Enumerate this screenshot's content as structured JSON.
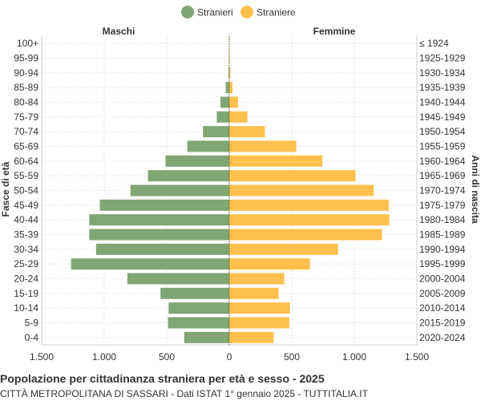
{
  "chart_data": {
    "type": "bar",
    "orientation": "horizontal-population-pyramid",
    "title": "Popolazione per cittadinanza straniera per età e sesso - 2025",
    "subtitle": "CITTÀ METROPOLITANA DI SASSARI - Dati ISTAT 1° gennaio 2025 - TUTTITALIA.IT",
    "left_header": "Maschi",
    "right_header": "Femmine",
    "ylabel_left": "Fasce di età",
    "ylabel_right": "Anni di nascita",
    "legend_position": "top-center",
    "grid": true,
    "xlim": [
      -1500,
      1500
    ],
    "x_ticks": [
      {
        "value": -1500,
        "label": "1.500"
      },
      {
        "value": -1000,
        "label": "1.000"
      },
      {
        "value": -500,
        "label": "500"
      },
      {
        "value": 0,
        "label": "0"
      },
      {
        "value": 500,
        "label": "500"
      },
      {
        "value": 1000,
        "label": "1.000"
      },
      {
        "value": 1500,
        "label": "1.500"
      }
    ],
    "age_groups": [
      "100+",
      "95-99",
      "90-94",
      "85-89",
      "80-84",
      "75-79",
      "70-74",
      "65-69",
      "60-64",
      "55-59",
      "50-54",
      "45-49",
      "40-44",
      "35-39",
      "30-34",
      "25-29",
      "20-24",
      "15-19",
      "10-14",
      "5-9",
      "0-4"
    ],
    "birth_years": [
      "≤ 1924",
      "1925-1929",
      "1930-1934",
      "1935-1939",
      "1940-1944",
      "1945-1949",
      "1950-1954",
      "1955-1959",
      "1960-1964",
      "1965-1969",
      "1970-1974",
      "1975-1979",
      "1980-1984",
      "1985-1989",
      "1990-1994",
      "1995-1999",
      "2000-2004",
      "2005-2009",
      "2010-2014",
      "2015-2019",
      "2020-2024"
    ],
    "series": [
      {
        "name": "Stranieri",
        "color": "#7fa673",
        "side": "left",
        "values": [
          0,
          2,
          5,
          28,
          70,
          100,
          210,
          335,
          510,
          650,
          790,
          1035,
          1120,
          1120,
          1065,
          1265,
          815,
          550,
          485,
          490,
          360
        ]
      },
      {
        "name": "Straniere",
        "color": "#ffc04d",
        "side": "right",
        "values": [
          0,
          3,
          8,
          25,
          70,
          145,
          285,
          535,
          745,
          1010,
          1155,
          1275,
          1280,
          1220,
          870,
          645,
          440,
          395,
          485,
          480,
          355
        ]
      }
    ]
  }
}
